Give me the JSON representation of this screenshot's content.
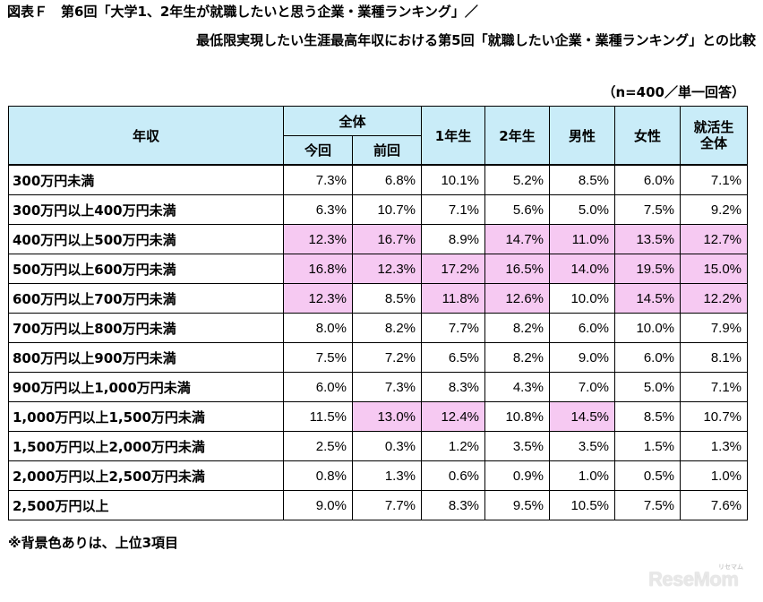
{
  "title_line1": "図表Ｆ　第6回「大学1、2年生が就職したいと思う企業・業種ランキング」／",
  "title_line2": "最低限実現したい生涯最高年収における第5回「就職したい企業・業種ランキング」との比較",
  "sample_note": "（n=400／単一回答）",
  "header": {
    "income": "年収",
    "overall": "全体",
    "current": "今回",
    "previous": "前回",
    "year1": "1年生",
    "year2": "2年生",
    "male": "男性",
    "female": "女性",
    "jobhunt_line1": "就活生",
    "jobhunt_line2": "全体"
  },
  "rows": [
    {
      "label": "300万円未満",
      "values": [
        "7.3%",
        "6.8%",
        "10.1%",
        "5.2%",
        "8.5%",
        "6.0%",
        "7.1%"
      ],
      "hl": [
        false,
        false,
        false,
        false,
        false,
        false,
        false
      ]
    },
    {
      "label": "300万円以上400万円未満",
      "values": [
        "6.3%",
        "10.7%",
        "7.1%",
        "5.6%",
        "5.0%",
        "7.5%",
        "9.2%"
      ],
      "hl": [
        false,
        false,
        false,
        false,
        false,
        false,
        false
      ]
    },
    {
      "label": "400万円以上500万円未満",
      "values": [
        "12.3%",
        "16.7%",
        "8.9%",
        "14.7%",
        "11.0%",
        "13.5%",
        "12.7%"
      ],
      "hl": [
        true,
        true,
        false,
        true,
        true,
        true,
        true
      ]
    },
    {
      "label": "500万円以上600万円未満",
      "values": [
        "16.8%",
        "12.3%",
        "17.2%",
        "16.5%",
        "14.0%",
        "19.5%",
        "15.0%"
      ],
      "hl": [
        true,
        true,
        true,
        true,
        true,
        true,
        true
      ]
    },
    {
      "label": "600万円以上700万円未満",
      "values": [
        "12.3%",
        "8.5%",
        "11.8%",
        "12.6%",
        "10.0%",
        "14.5%",
        "12.2%"
      ],
      "hl": [
        true,
        false,
        true,
        true,
        false,
        true,
        true
      ]
    },
    {
      "label": "700万円以上800万円未満",
      "values": [
        "8.0%",
        "8.2%",
        "7.7%",
        "8.2%",
        "6.0%",
        "10.0%",
        "7.9%"
      ],
      "hl": [
        false,
        false,
        false,
        false,
        false,
        false,
        false
      ]
    },
    {
      "label": "800万円以上900万円未満",
      "values": [
        "7.5%",
        "7.2%",
        "6.5%",
        "8.2%",
        "9.0%",
        "6.0%",
        "8.1%"
      ],
      "hl": [
        false,
        false,
        false,
        false,
        false,
        false,
        false
      ]
    },
    {
      "label": "900万円以上1,000万円未満",
      "values": [
        "6.0%",
        "7.3%",
        "8.3%",
        "4.3%",
        "7.0%",
        "5.0%",
        "7.1%"
      ],
      "hl": [
        false,
        false,
        false,
        false,
        false,
        false,
        false
      ]
    },
    {
      "label": "1,000万円以上1,500万円未満",
      "values": [
        "11.5%",
        "13.0%",
        "12.4%",
        "10.8%",
        "14.5%",
        "8.5%",
        "10.7%"
      ],
      "hl": [
        false,
        true,
        true,
        false,
        true,
        false,
        false
      ]
    },
    {
      "label": "1,500万円以上2,000万円未満",
      "values": [
        "2.5%",
        "0.3%",
        "1.2%",
        "3.5%",
        "3.5%",
        "1.5%",
        "1.3%"
      ],
      "hl": [
        false,
        false,
        false,
        false,
        false,
        false,
        false
      ]
    },
    {
      "label": "2,000万円以上2,500万円未満",
      "values": [
        "0.8%",
        "1.3%",
        "0.6%",
        "0.9%",
        "1.0%",
        "0.5%",
        "1.0%"
      ],
      "hl": [
        false,
        false,
        false,
        false,
        false,
        false,
        false
      ]
    },
    {
      "label": "2,500万円以上",
      "values": [
        "9.0%",
        "7.7%",
        "8.3%",
        "9.5%",
        "10.5%",
        "7.5%",
        "7.6%"
      ],
      "hl": [
        false,
        false,
        false,
        false,
        false,
        false,
        false
      ]
    }
  ],
  "footnote": "※背景色ありは、上位3項目",
  "logo_text": "ReseMom",
  "logo_sub": "リセマム",
  "colors": {
    "header_bg": "#c9ecf8",
    "highlight_bg": "#f6c9f2"
  }
}
